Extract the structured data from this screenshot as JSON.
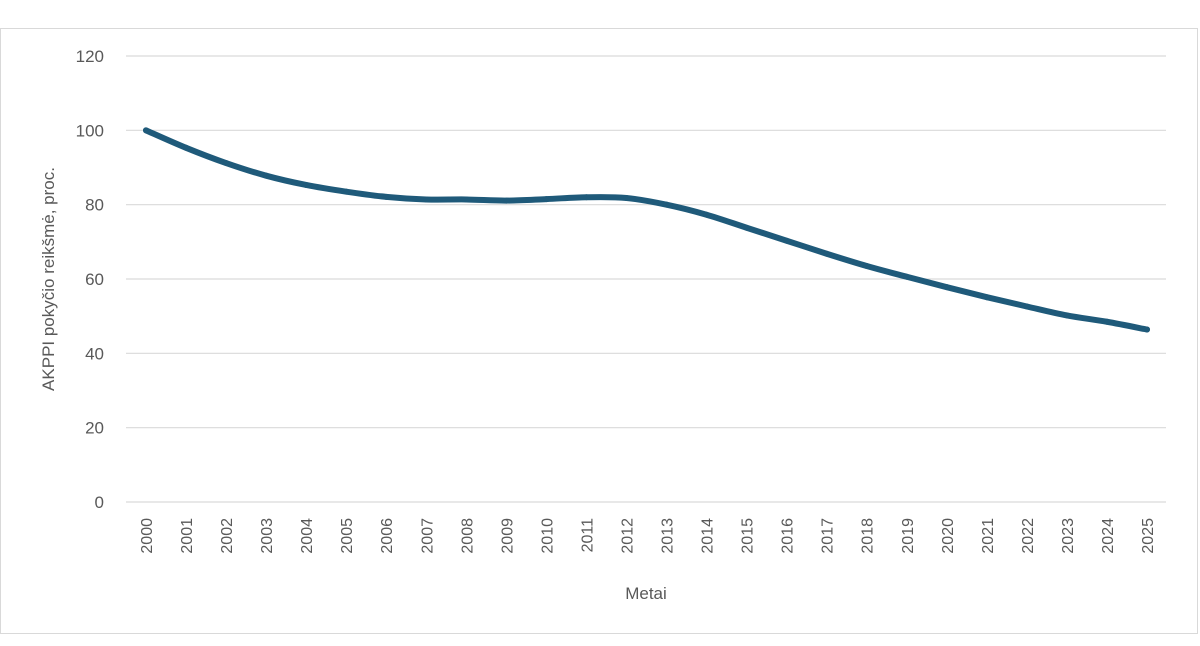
{
  "chart_data": {
    "type": "line",
    "title": "",
    "xlabel": "Metai",
    "ylabel": "AKPPI pokyčio reikšmė, proc.",
    "ylim": [
      0,
      120
    ],
    "yticks": [
      "0",
      "20",
      "40",
      "60",
      "80",
      "100",
      "120"
    ],
    "categories": [
      "2000",
      "2001",
      "2002",
      "2003",
      "2004",
      "2005",
      "2006",
      "2007",
      "2008",
      "2009",
      "2010",
      "2011",
      "2012",
      "2013",
      "2014",
      "2015",
      "2016",
      "2017",
      "2018",
      "2019",
      "2020",
      "2021",
      "2022",
      "2023",
      "2024",
      "2025"
    ],
    "series": [
      {
        "color": "#1f5a7a",
        "values": [
          100,
          95.3,
          91.2,
          87.8,
          85.3,
          83.5,
          82.1,
          81.4,
          81.4,
          81.1,
          81.5,
          82.0,
          81.8,
          80.0,
          77.3,
          73.8,
          70.3,
          66.8,
          63.5,
          60.6,
          57.8,
          55.1,
          52.6,
          50.2,
          48.5,
          46.4
        ]
      }
    ],
    "grid": true,
    "legend": "none"
  }
}
